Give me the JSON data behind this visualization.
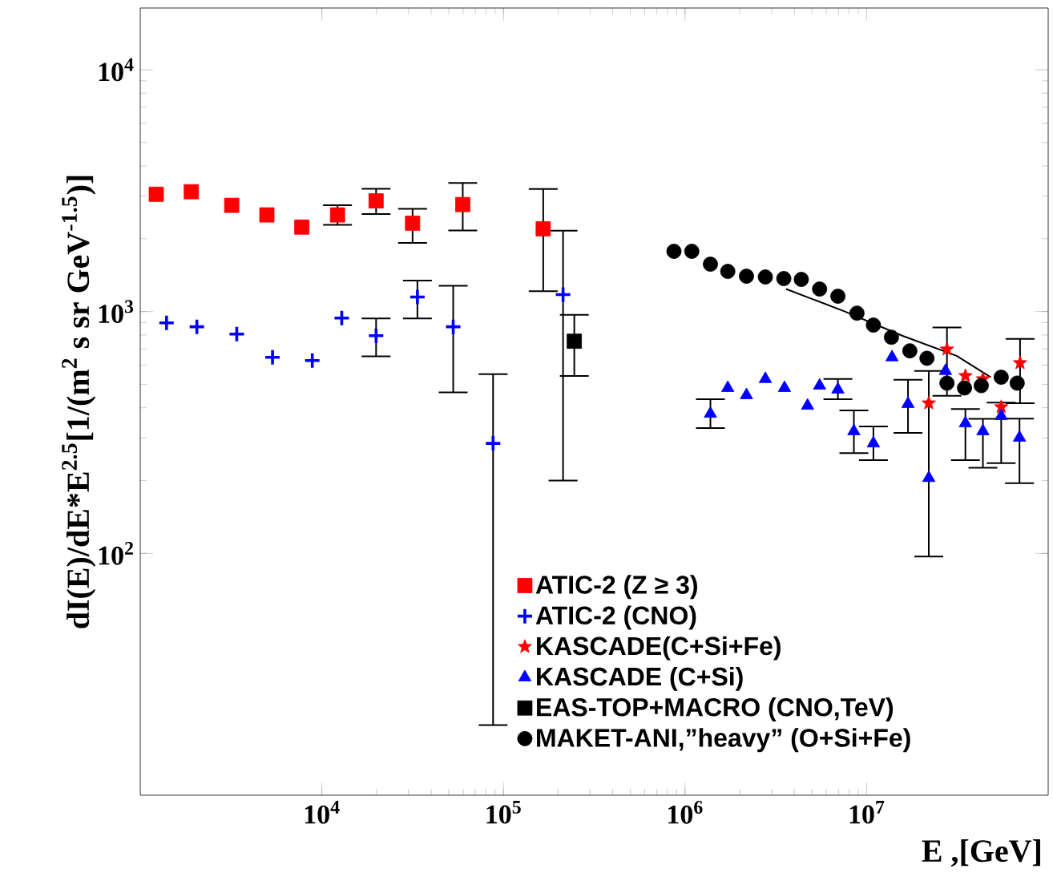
{
  "chart_data": {
    "type": "scatter",
    "xlabel": "E ,[GeV]",
    "ylabel": "dI(E)/dE*E$^{2.5}$[1/(m$^{2}$ s sr GeV$^{-1.5}$)]",
    "log": "xy",
    "legend": "bottom",
    "xlim": [
      1000,
      100000000
    ],
    "ylim": [
      10,
      18000
    ],
    "xticks": [
      {
        "value": 10000,
        "label": "10$^{4}$"
      },
      {
        "value": 100000,
        "label": "10$^{5}$"
      },
      {
        "value": 1000000,
        "label": "10$^{6}$"
      },
      {
        "value": 10000000,
        "label": "10$^{7}$"
      }
    ],
    "yticks": [
      {
        "value": 100,
        "label": "10$^{2}$"
      },
      {
        "value": 1000,
        "label": "10$^{3}$"
      },
      {
        "value": 10000,
        "label": "10$^{4}$"
      }
    ],
    "series": [
      {
        "name": "ATIC-2 (Z ≥ 3)",
        "color": "#ff0000",
        "marker": "square",
        "x": [
          1225,
          1910,
          3190,
          4980,
          7760,
          12200,
          19900,
          31600,
          59700,
          165600
        ],
        "values": [
          3055,
          3130,
          2750,
          2510,
          2235,
          2510,
          2870,
          2320,
          2770,
          2200
        ],
        "errors": [
          null,
          null,
          null,
          null,
          null,
          [
            2285,
            2750
          ],
          [
            2530,
            3220
          ],
          [
            1925,
            2660
          ],
          [
            2165,
            3400
          ],
          [
            1215,
            3215
          ]
        ]
      },
      {
        "name": "ATIC-2 (CNO)",
        "color": "#0000ff",
        "marker": "cross",
        "x": [
          1396,
          2050,
          3400,
          5350,
          8860,
          12870,
          19900,
          33600,
          52900,
          87700,
          213000
        ],
        "values": [
          898,
          865,
          807,
          647,
          627,
          940,
          795,
          1148,
          865,
          285,
          1175
        ],
        "errors": [
          null,
          null,
          null,
          null,
          null,
          null,
          [
            653,
            936
          ],
          [
            936,
            1342
          ],
          [
            463,
            1277
          ],
          [
            19.5,
            551
          ],
          [
            200,
            2160
          ]
        ]
      },
      {
        "name": "KASCADE(C+Si+Fe)",
        "color": "#ff0000",
        "marker": "star",
        "x": [
          22000000,
          27700000,
          35000000,
          43700000,
          55100000,
          70000000
        ],
        "values": [
          418,
          698,
          542,
          526,
          403,
          613
        ],
        "errors": [
          null,
          [
            448,
            859
          ],
          null,
          null,
          null,
          [
            418,
            771
          ]
        ]
      },
      {
        "name": "KASCADE (C+Si)",
        "color": "#0000ff",
        "marker": "triangle",
        "x": [
          1380000,
          1720000,
          2180000,
          2770000,
          3530000,
          4730000,
          5510000,
          6950000,
          8510000,
          10900000,
          13800000,
          16900000,
          22000000,
          27200000,
          35000000,
          43700000,
          55100000,
          69500000
        ],
        "values": [
          378,
          483,
          451,
          526,
          483,
          408,
          494,
          476,
          320,
          285,
          647,
          415,
          205,
          568,
          345,
          320,
          370,
          301
        ],
        "errors": [
          [
            330,
            434
          ],
          null,
          null,
          null,
          null,
          null,
          null,
          [
            434,
            526
          ],
          [
            260,
            390
          ],
          [
            243,
            335
          ],
          null,
          [
            315,
            522
          ],
          [
            97,
            568
          ],
          null,
          [
            243,
            395
          ],
          [
            226,
            360
          ],
          [
            236,
            420
          ],
          [
            195,
            361
          ]
        ]
      },
      {
        "name": "EAS-TOP+MACRO (CNO,TeV)",
        "color": "#000000",
        "marker": "square",
        "x": [
          245600
        ],
        "values": [
          754
        ],
        "errors": [
          [
            542,
            970
          ]
        ]
      },
      {
        "name": "MAKET-ANI,”heavy” (O+Si+Fe)",
        "color": "#000000",
        "marker": "circle",
        "x": [
          869000,
          1090000,
          1380000,
          1720000,
          2180000,
          2770000,
          3500000,
          4370000,
          5510000,
          6950000,
          8850000,
          10900000,
          13700000,
          17300000,
          21500000,
          27700000,
          34600000,
          42800000,
          55100000,
          67500000
        ],
        "values": [
          1775,
          1775,
          1570,
          1466,
          1400,
          1390,
          1369,
          1358,
          1239,
          1157,
          985,
          879,
          783,
          688,
          641,
          506,
          483,
          494,
          535,
          506
        ]
      },
      {
        "type": "line",
        "color": "#000000",
        "marker": "none",
        "x": [
          3600000,
          7600000,
          15700000,
          31300000,
          48300000
        ],
        "values": [
          1240,
          1000,
          795,
          656,
          535
        ]
      }
    ]
  }
}
